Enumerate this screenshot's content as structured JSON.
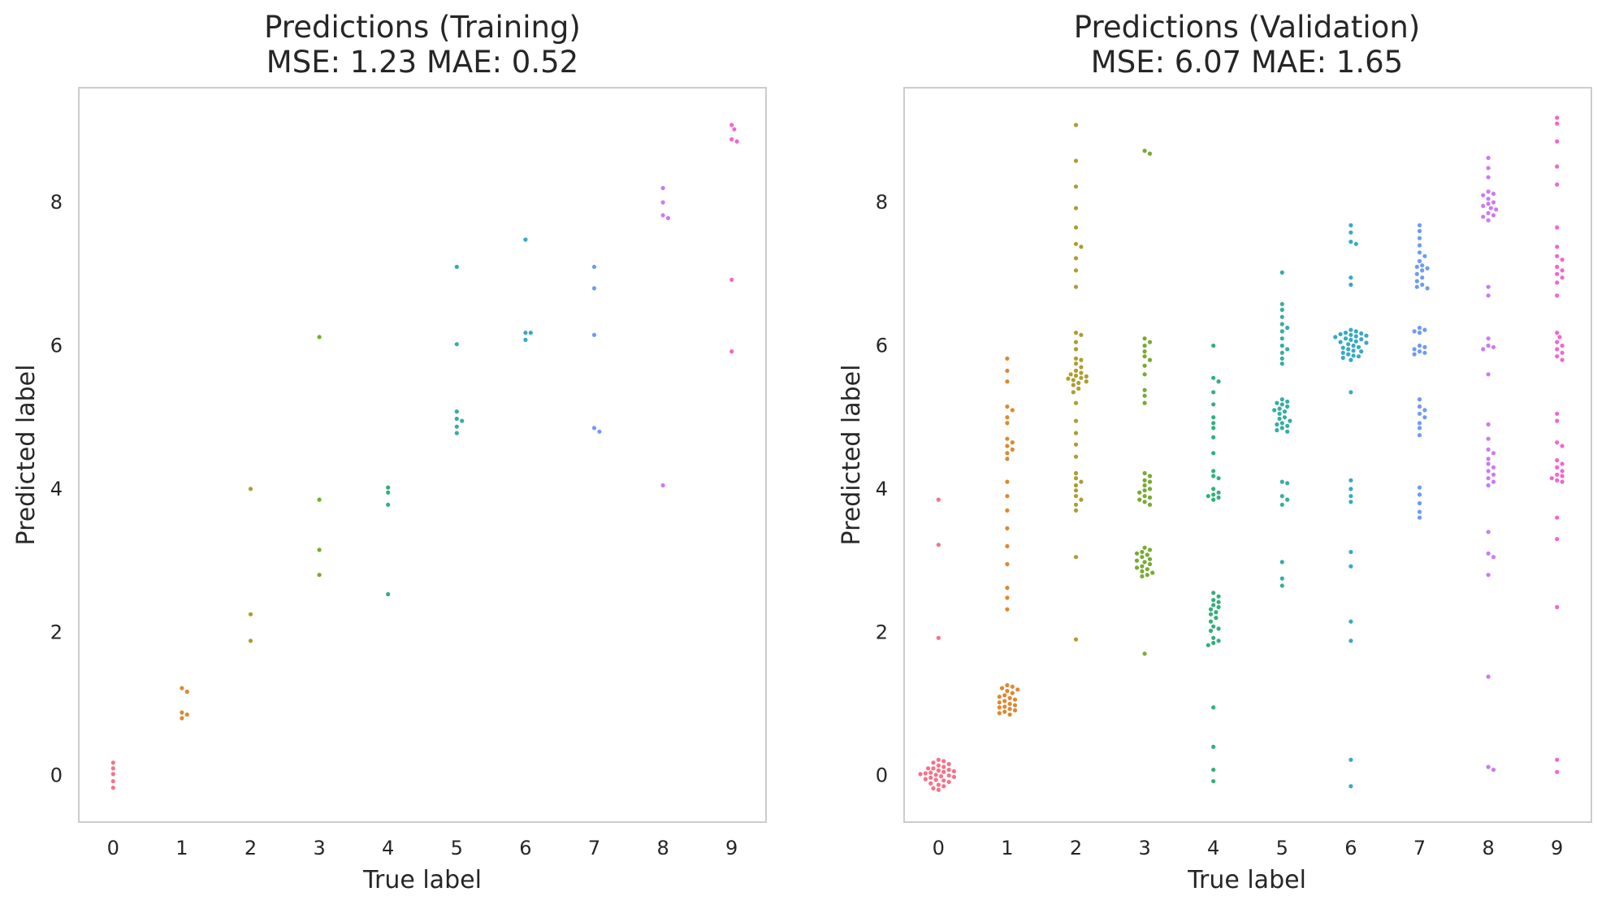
{
  "chart_data": [
    {
      "type": "scatter",
      "title": "Predictions (Training)",
      "subtitle": "MSE: 1.23 MAE: 0.52",
      "xlabel": "True label",
      "ylabel": "Predicted label",
      "categories": [
        "0",
        "1",
        "2",
        "3",
        "4",
        "5",
        "6",
        "7",
        "8",
        "9"
      ],
      "yticks": [
        0,
        2,
        4,
        6,
        8
      ],
      "ylim": [
        -0.65,
        9.6
      ],
      "grid": false,
      "legend": "none",
      "points": [
        {
          "x": 0,
          "y": [
            0.18,
            0.1,
            0.02,
            -0.08,
            -0.17
          ]
        },
        {
          "x": 1,
          "y": [
            1.22,
            1.17,
            0.88,
            0.85,
            0.8
          ]
        },
        {
          "x": 2,
          "y": [
            4.0,
            2.25,
            1.88
          ]
        },
        {
          "x": 3,
          "y": [
            6.12,
            3.85,
            3.15,
            2.8
          ]
        },
        {
          "x": 4,
          "y": [
            4.02,
            3.95,
            3.78,
            2.53
          ]
        },
        {
          "x": 5,
          "y": [
            7.1,
            6.02,
            5.08,
            4.98,
            4.95,
            4.87,
            4.78
          ]
        },
        {
          "x": 6,
          "y": [
            7.48,
            6.18,
            6.18,
            6.08
          ]
        },
        {
          "x": 7,
          "y": [
            7.1,
            6.8,
            6.15,
            4.85,
            4.8
          ]
        },
        {
          "x": 8,
          "y": [
            8.2,
            8.0,
            7.82,
            7.78,
            4.05
          ]
        },
        {
          "x": 9,
          "y": [
            9.08,
            9.02,
            8.88,
            8.85,
            6.92,
            5.92
          ]
        }
      ]
    },
    {
      "type": "scatter",
      "title": "Predictions (Validation)",
      "subtitle": "MSE: 6.07 MAE: 1.65",
      "xlabel": "True label",
      "ylabel": "Predicted label",
      "categories": [
        "0",
        "1",
        "2",
        "3",
        "4",
        "5",
        "6",
        "7",
        "8",
        "9"
      ],
      "yticks": [
        0,
        2,
        4,
        6,
        8
      ],
      "ylim": [
        -0.65,
        9.6
      ],
      "grid": false,
      "legend": "none",
      "points": [
        {
          "x": 0,
          "y": [
            3.85,
            3.22,
            1.92,
            0.22,
            0.2,
            0.18,
            0.16,
            0.14,
            0.12,
            0.1,
            0.1,
            0.08,
            0.07,
            0.06,
            0.05,
            0.04,
            0.03,
            0.02,
            0.01,
            0.0,
            -0.01,
            -0.02,
            -0.03,
            -0.05,
            -0.06,
            -0.07,
            -0.09,
            -0.11,
            -0.13,
            -0.15,
            -0.18,
            -0.2
          ]
        },
        {
          "x": 1,
          "y": [
            5.82,
            5.65,
            5.5,
            5.15,
            5.1,
            5.0,
            4.92,
            4.7,
            4.65,
            4.6,
            4.55,
            4.5,
            4.42,
            4.1,
            3.9,
            3.7,
            3.45,
            3.2,
            2.95,
            2.62,
            2.48,
            2.32,
            1.26,
            1.24,
            1.22,
            1.2,
            1.18,
            1.15,
            1.12,
            1.1,
            1.08,
            1.06,
            1.04,
            1.02,
            1.0,
            0.98,
            0.96,
            0.95,
            0.93,
            0.91,
            0.89,
            0.87,
            0.85
          ]
        },
        {
          "x": 2,
          "y": [
            9.08,
            8.58,
            8.22,
            7.92,
            7.65,
            7.42,
            7.38,
            7.22,
            7.05,
            6.82,
            6.18,
            6.15,
            6.05,
            5.95,
            5.82,
            5.8,
            5.75,
            5.7,
            5.65,
            5.62,
            5.6,
            5.58,
            5.57,
            5.55,
            5.54,
            5.52,
            5.5,
            5.48,
            5.45,
            5.4,
            5.35,
            5.2,
            4.95,
            4.78,
            4.62,
            4.45,
            4.22,
            4.15,
            4.1,
            4.05,
            3.98,
            3.9,
            3.85,
            3.78,
            3.7,
            3.05,
            1.9
          ]
        },
        {
          "x": 3,
          "y": [
            8.72,
            8.68,
            6.1,
            6.05,
            6.0,
            5.92,
            5.85,
            5.8,
            5.72,
            5.6,
            5.38,
            5.3,
            5.2,
            4.22,
            4.18,
            4.12,
            4.1,
            4.05,
            4.0,
            3.98,
            3.95,
            3.9,
            3.88,
            3.85,
            3.82,
            3.78,
            3.18,
            3.15,
            3.12,
            3.1,
            3.08,
            3.05,
            3.02,
            3.0,
            2.98,
            2.95,
            2.92,
            2.9,
            2.88,
            2.85,
            2.83,
            2.8,
            2.78,
            1.7
          ]
        },
        {
          "x": 4,
          "y": [
            6.0,
            5.55,
            5.5,
            5.35,
            5.18,
            5.0,
            4.92,
            4.85,
            4.72,
            4.5,
            4.25,
            4.18,
            4.15,
            4.0,
            3.95,
            3.92,
            3.9,
            3.88,
            3.85,
            2.55,
            2.5,
            2.45,
            2.42,
            2.38,
            2.35,
            2.32,
            2.28,
            2.25,
            2.2,
            2.15,
            2.08,
            2.05,
            2.02,
            1.92,
            1.88,
            1.85,
            1.82,
            0.95,
            0.4,
            0.08,
            -0.08
          ]
        },
        {
          "x": 5,
          "y": [
            7.02,
            6.58,
            6.5,
            6.4,
            6.3,
            6.25,
            6.2,
            6.1,
            6.0,
            5.95,
            5.9,
            5.82,
            5.75,
            5.25,
            5.22,
            5.2,
            5.18,
            5.15,
            5.12,
            5.1,
            5.08,
            5.05,
            5.0,
            4.98,
            4.95,
            4.92,
            4.9,
            4.88,
            4.85,
            4.82,
            4.8,
            4.1,
            4.08,
            3.9,
            3.85,
            3.78,
            2.98,
            2.75,
            2.65
          ]
        },
        {
          "x": 6,
          "y": [
            7.68,
            7.58,
            7.45,
            7.42,
            6.95,
            6.85,
            6.22,
            6.2,
            6.18,
            6.17,
            6.16,
            6.15,
            6.14,
            6.13,
            6.12,
            6.1,
            6.09,
            6.08,
            6.06,
            6.05,
            6.04,
            6.02,
            6.0,
            5.98,
            5.97,
            5.95,
            5.93,
            5.92,
            5.9,
            5.88,
            5.86,
            5.85,
            5.83,
            5.8,
            5.35,
            4.12,
            4.0,
            3.9,
            3.82,
            3.12,
            2.92,
            2.15,
            1.88,
            0.22,
            -0.15
          ]
        },
        {
          "x": 7,
          "y": [
            7.68,
            7.6,
            7.5,
            7.4,
            7.3,
            7.25,
            7.18,
            7.12,
            7.1,
            7.08,
            7.05,
            7.0,
            6.95,
            6.9,
            6.85,
            6.82,
            6.8,
            6.25,
            6.22,
            6.2,
            6.18,
            6.0,
            5.98,
            5.95,
            5.92,
            5.9,
            5.88,
            5.25,
            5.15,
            5.1,
            5.05,
            5.0,
            4.92,
            4.85,
            4.75,
            4.02,
            3.92,
            3.8,
            3.68,
            3.6
          ]
        },
        {
          "x": 8,
          "y": [
            8.62,
            8.48,
            8.35,
            8.15,
            8.12,
            8.1,
            8.05,
            8.0,
            7.98,
            7.95,
            7.92,
            7.9,
            7.85,
            7.82,
            7.8,
            7.75,
            6.82,
            6.7,
            6.1,
            6.0,
            5.98,
            5.95,
            5.6,
            4.9,
            4.7,
            4.55,
            4.5,
            4.42,
            4.35,
            4.3,
            4.25,
            4.2,
            4.15,
            4.1,
            4.05,
            3.4,
            3.1,
            3.05,
            2.8,
            1.38,
            0.12,
            0.08
          ]
        },
        {
          "x": 9,
          "y": [
            9.18,
            9.1,
            8.85,
            8.5,
            8.25,
            7.65,
            7.38,
            7.25,
            7.2,
            7.1,
            7.05,
            7.0,
            6.95,
            6.88,
            6.7,
            6.18,
            6.12,
            6.05,
            6.0,
            5.95,
            5.9,
            5.85,
            5.8,
            5.05,
            4.95,
            4.65,
            4.6,
            4.4,
            4.35,
            4.3,
            4.25,
            4.2,
            4.18,
            4.15,
            4.12,
            4.1,
            3.6,
            3.3,
            2.35,
            0.22,
            0.05
          ]
        }
      ]
    }
  ],
  "colors": {
    "palette": [
      "#f77189",
      "#dc8932",
      "#ae9d31",
      "#77ab31",
      "#33b07a",
      "#36ada4",
      "#38a9c5",
      "#6e9bf4",
      "#cc7af4",
      "#f565cc"
    ],
    "axis_frame": "#cccccc",
    "text": "#262626",
    "background": "#ffffff"
  }
}
